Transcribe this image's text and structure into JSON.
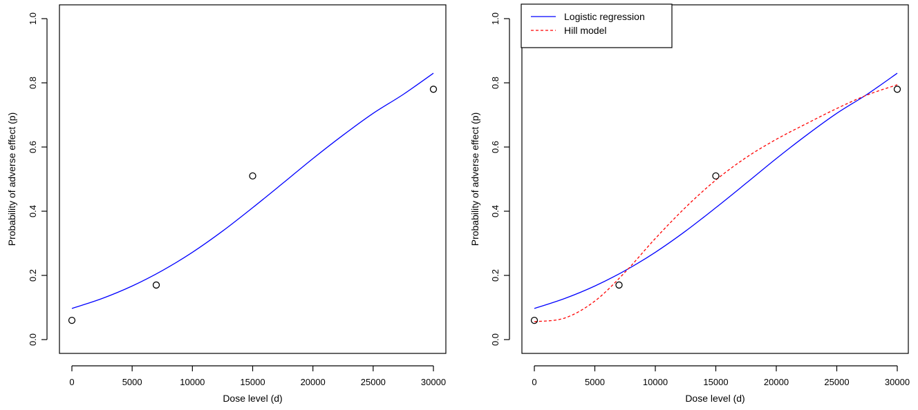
{
  "chart_data": [
    {
      "type": "line",
      "title": "",
      "xlabel": "Dose level (d)",
      "ylabel": "Probability of adverse effect (p)",
      "xlim": [
        0,
        30000
      ],
      "ylim": [
        0,
        1
      ],
      "xticks": [
        0,
        5000,
        10000,
        15000,
        20000,
        25000,
        30000
      ],
      "yticks": [
        0.0,
        0.2,
        0.4,
        0.6,
        0.8,
        1.0
      ],
      "xtick_labels": [
        "0",
        "5000",
        "10000",
        "15000",
        "20000",
        "25000",
        "30000"
      ],
      "ytick_labels": [
        "0.0",
        "0.2",
        "0.4",
        "0.6",
        "0.8",
        "1.0"
      ],
      "grid": false,
      "legend": null,
      "points": {
        "x": [
          0,
          7000,
          15000,
          30000
        ],
        "y": [
          0.06,
          0.17,
          0.51,
          0.78
        ]
      },
      "series": [
        {
          "color": "#0000ff",
          "dash": "solid",
          "x": [
            0,
            2500,
            5000,
            7500,
            10000,
            12500,
            15000,
            17500,
            20000,
            22500,
            25000,
            27500,
            30000
          ],
          "y": [
            0.097,
            0.128,
            0.167,
            0.215,
            0.272,
            0.338,
            0.411,
            0.487,
            0.564,
            0.637,
            0.705,
            0.764,
            0.83
          ]
        }
      ]
    },
    {
      "type": "line",
      "title": "",
      "xlabel": "Dose level (d)",
      "ylabel": "Probability of adverse effect (p)",
      "xlim": [
        0,
        30000
      ],
      "ylim": [
        0,
        1
      ],
      "xticks": [
        0,
        5000,
        10000,
        15000,
        20000,
        25000,
        30000
      ],
      "yticks": [
        0.0,
        0.2,
        0.4,
        0.6,
        0.8,
        1.0
      ],
      "xtick_labels": [
        "0",
        "5000",
        "10000",
        "15000",
        "20000",
        "25000",
        "30000"
      ],
      "ytick_labels": [
        "0.0",
        "0.2",
        "0.4",
        "0.6",
        "0.8",
        "1.0"
      ],
      "grid": false,
      "legend": "top-left",
      "points": {
        "x": [
          0,
          7000,
          15000,
          30000
        ],
        "y": [
          0.06,
          0.17,
          0.51,
          0.78
        ]
      },
      "series": [
        {
          "name": "Logistic regression",
          "color": "#0000ff",
          "dash": "solid",
          "x": [
            0,
            2500,
            5000,
            7500,
            10000,
            12500,
            15000,
            17500,
            20000,
            22500,
            25000,
            27500,
            30000
          ],
          "y": [
            0.097,
            0.128,
            0.167,
            0.215,
            0.272,
            0.338,
            0.411,
            0.487,
            0.564,
            0.637,
            0.705,
            0.764,
            0.83
          ]
        },
        {
          "name": "Hill model",
          "color": "#ff0000",
          "dash": "dashed",
          "x": [
            0,
            2500,
            5000,
            7500,
            10000,
            12500,
            15000,
            17500,
            20000,
            22500,
            25000,
            27500,
            30000
          ],
          "y": [
            0.056,
            0.067,
            0.12,
            0.21,
            0.315,
            0.412,
            0.497,
            0.567,
            0.624,
            0.673,
            0.72,
            0.762,
            0.794
          ]
        }
      ]
    }
  ]
}
